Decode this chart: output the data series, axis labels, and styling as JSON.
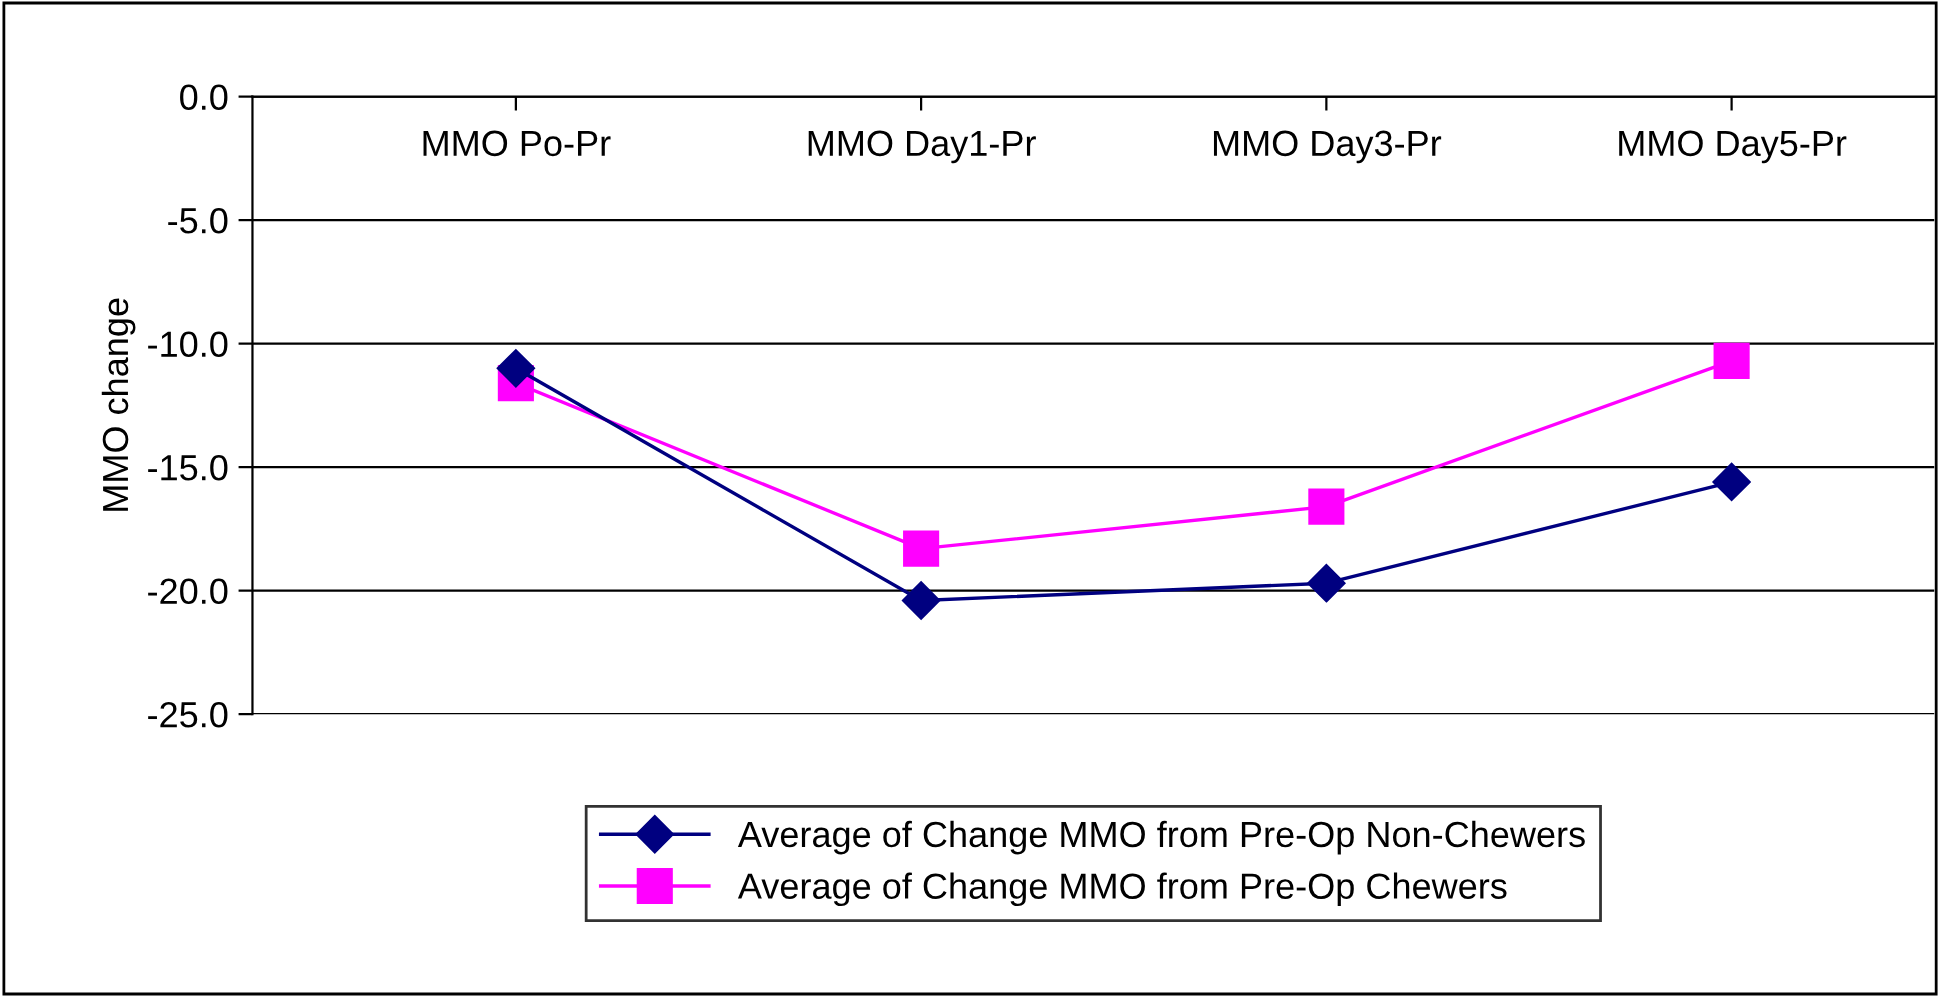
{
  "chart_data": {
    "type": "line",
    "ylabel": "MMO change",
    "categories": [
      "MMO Po-Pr",
      "MMO Day1-Pr",
      "MMO Day3-Pr",
      "MMO Day5-Pr"
    ],
    "series": [
      {
        "name": "Average of Change MMO from Pre-Op Non-Chewers",
        "color": "#000080",
        "marker": "diamond",
        "values": [
          -11.0,
          -20.4,
          -19.7,
          -15.6
        ]
      },
      {
        "name": "Average of Change MMO from Pre-Op Chewers",
        "color": "#ff00ff",
        "marker": "square",
        "values": [
          -11.6,
          -18.3,
          -16.6,
          -10.7
        ]
      }
    ],
    "ylim": [
      -25,
      0
    ],
    "yticks": [
      {
        "value": 0,
        "label": "0.0"
      },
      {
        "value": -5,
        "label": "-5.0"
      },
      {
        "value": -10,
        "label": "-10.0"
      },
      {
        "value": -15,
        "label": "-15.0"
      },
      {
        "value": -20,
        "label": "-20.0"
      },
      {
        "value": -25,
        "label": "-25.0"
      }
    ],
    "grid": "y",
    "legend": "bottom"
  }
}
